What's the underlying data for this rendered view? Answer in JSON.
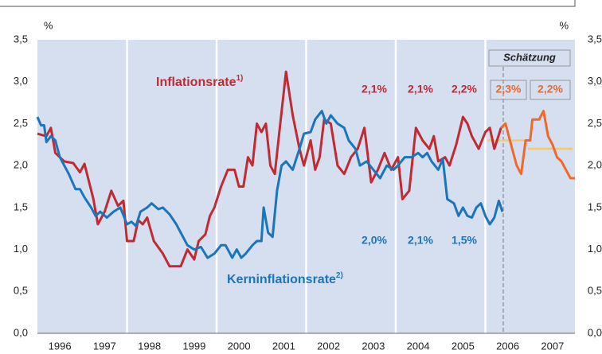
{
  "chart_data": {
    "type": "line",
    "y_unit_left": "%",
    "y_unit_right": "%",
    "xlim": [
      1996,
      2008
    ],
    "ylim": [
      0,
      3.5
    ],
    "yticks": [
      {
        "value": 0,
        "label": "0,0"
      },
      {
        "value": 0.5,
        "label": "0,5"
      },
      {
        "value": 1,
        "label": "1,0"
      },
      {
        "value": 1.5,
        "label": "1,5"
      },
      {
        "value": 2,
        "label": "2,0"
      },
      {
        "value": 2.5,
        "label": "2,5"
      },
      {
        "value": 3,
        "label": "3,0"
      },
      {
        "value": 3.5,
        "label": "3,5"
      }
    ],
    "xticks": [
      {
        "value": 1996.5,
        "label": "1996"
      },
      {
        "value": 1997.5,
        "label": "1997"
      },
      {
        "value": 1998.5,
        "label": "1998"
      },
      {
        "value": 1999.5,
        "label": "1999"
      },
      {
        "value": 2000.5,
        "label": "2000"
      },
      {
        "value": 2001.5,
        "label": "2001"
      },
      {
        "value": 2002.5,
        "label": "2002"
      },
      {
        "value": 2003.5,
        "label": "2003"
      },
      {
        "value": 2004.5,
        "label": "2004"
      },
      {
        "value": 2005.5,
        "label": "2005"
      },
      {
        "value": 2006.5,
        "label": "2006"
      },
      {
        "value": 2007.5,
        "label": "2007"
      }
    ],
    "separators": [
      1998,
      2000,
      2002,
      2004,
      2006
    ],
    "background": "#d5dff0",
    "forecast_start": 2006.4,
    "forecast_label": "Schätzung",
    "series": [
      {
        "name": "Inflationsrate",
        "note": "1)",
        "color": "#c22a32",
        "x": [
          1996.0,
          1996.2,
          1996.3,
          1996.4,
          1996.6,
          1996.8,
          1996.95,
          1997.05,
          1997.25,
          1997.35,
          1997.5,
          1997.65,
          1997.8,
          1997.92,
          1998.0,
          1998.15,
          1998.25,
          1998.35,
          1998.45,
          1998.6,
          1998.8,
          1998.95,
          1999.2,
          1999.35,
          1999.5,
          1999.6,
          1999.75,
          1999.85,
          1999.95,
          2000.1,
          2000.25,
          2000.4,
          2000.5,
          2000.6,
          2000.7,
          2000.8,
          2000.9,
          2001.0,
          2001.1,
          2001.2,
          2001.3,
          2001.4,
          2001.55,
          2001.7,
          2001.85,
          2001.95,
          2002.1,
          2002.2,
          2002.3,
          2002.4,
          2002.55,
          2002.7,
          2002.85,
          2003.0,
          2003.15,
          2003.3,
          2003.45,
          2003.6,
          2003.75,
          2003.9,
          2004.05,
          2004.15,
          2004.3,
          2004.45,
          2004.6,
          2004.75,
          2004.85,
          2004.95,
          2005.1,
          2005.2,
          2005.35,
          2005.5,
          2005.6,
          2005.7,
          2005.85,
          2006.0,
          2006.1,
          2006.2,
          2006.35
        ],
        "values": [
          2.38,
          2.35,
          2.45,
          2.15,
          2.05,
          2.03,
          1.92,
          2.02,
          1.6,
          1.3,
          1.45,
          1.7,
          1.52,
          1.58,
          1.1,
          1.1,
          1.35,
          1.3,
          1.38,
          1.1,
          0.95,
          0.8,
          0.8,
          1.0,
          0.88,
          1.1,
          1.18,
          1.4,
          1.5,
          1.75,
          1.95,
          1.95,
          1.75,
          1.75,
          2.1,
          2.0,
          2.5,
          2.4,
          2.5,
          2.0,
          1.9,
          2.4,
          3.12,
          2.6,
          2.2,
          2.0,
          2.3,
          1.95,
          2.1,
          2.55,
          2.5,
          2.0,
          1.9,
          2.1,
          2.2,
          2.45,
          1.8,
          1.95,
          2.15,
          1.95,
          2.1,
          1.6,
          1.7,
          2.45,
          2.3,
          2.2,
          2.35,
          2.05,
          2.1,
          2.0,
          2.25,
          2.58,
          2.5,
          2.35,
          2.2,
          2.4,
          2.45,
          2.2,
          2.45
        ]
      },
      {
        "name": "Kerninflationsrate",
        "note": "2)",
        "color": "#1b75ba",
        "x": [
          1996.0,
          1996.08,
          1996.15,
          1996.2,
          1996.3,
          1996.4,
          1996.5,
          1996.7,
          1996.85,
          1996.95,
          1997.05,
          1997.2,
          1997.3,
          1997.4,
          1997.55,
          1997.7,
          1997.85,
          1998.0,
          1998.1,
          1998.2,
          1998.3,
          1998.45,
          1998.55,
          1998.7,
          1998.8,
          1998.95,
          1999.1,
          1999.2,
          1999.35,
          1999.5,
          1999.65,
          1999.8,
          1999.95,
          2000.1,
          2000.2,
          2000.35,
          2000.45,
          2000.55,
          2000.65,
          2000.8,
          2000.9,
          2001.0,
          2001.05,
          2001.15,
          2001.25,
          2001.35,
          2001.45,
          2001.55,
          2001.7,
          2001.85,
          2001.95,
          2002.1,
          2002.2,
          2002.35,
          2002.45,
          2002.55,
          2002.7,
          2002.85,
          2002.95,
          2003.1,
          2003.2,
          2003.35,
          2003.5,
          2003.65,
          2003.8,
          2003.95,
          2004.05,
          2004.2,
          2004.35,
          2004.5,
          2004.6,
          2004.7,
          2004.8,
          2004.95,
          2005.05,
          2005.15,
          2005.3,
          2005.4,
          2005.5,
          2005.6,
          2005.7,
          2005.8,
          2005.9,
          2006.0,
          2006.1,
          2006.2,
          2006.3,
          2006.38
        ],
        "values": [
          2.58,
          2.48,
          2.48,
          2.28,
          2.35,
          2.3,
          2.1,
          1.9,
          1.72,
          1.72,
          1.62,
          1.5,
          1.4,
          1.45,
          1.38,
          1.45,
          1.5,
          1.3,
          1.33,
          1.28,
          1.45,
          1.5,
          1.55,
          1.48,
          1.5,
          1.42,
          1.3,
          1.2,
          1.05,
          1.0,
          1.03,
          0.9,
          0.95,
          1.05,
          1.05,
          0.9,
          1.0,
          0.9,
          0.95,
          1.05,
          1.1,
          1.1,
          1.5,
          1.2,
          1.15,
          1.7,
          2.0,
          2.05,
          1.95,
          2.2,
          2.38,
          2.4,
          2.55,
          2.65,
          2.5,
          2.6,
          2.5,
          2.45,
          2.3,
          2.2,
          2.0,
          2.05,
          1.95,
          1.85,
          2.0,
          1.95,
          2.0,
          2.1,
          2.1,
          2.15,
          2.1,
          2.15,
          2.05,
          1.95,
          2.08,
          1.6,
          1.55,
          1.4,
          1.5,
          1.4,
          1.38,
          1.5,
          1.55,
          1.4,
          1.3,
          1.38,
          1.58,
          1.45
        ]
      },
      {
        "color": "#f0682b",
        "x": [
          2006.35,
          2006.45,
          2006.6,
          2006.7,
          2006.8,
          2006.9,
          2007.0,
          2007.05,
          2007.2,
          2007.3,
          2007.4,
          2007.5,
          2007.6,
          2007.7,
          2007.8,
          2007.9,
          2008.0
        ],
        "values": [
          2.45,
          2.5,
          2.2,
          2.0,
          1.9,
          2.3,
          2.3,
          2.55,
          2.55,
          2.65,
          2.35,
          2.25,
          2.1,
          2.05,
          1.95,
          1.85,
          1.85
        ]
      }
    ],
    "averages": {
      "color": "#f6c86a",
      "segments": [
        {
          "start": 2006.05,
          "end": 2006.9,
          "value": 2.3
        },
        {
          "start": 2006.95,
          "end": 2007.95,
          "value": 2.2
        }
      ]
    },
    "annotations": {
      "inflation": [
        "2,1%",
        "2,1%",
        "2,2%"
      ],
      "inflation_forecast": [
        "2,3%",
        "2,2%"
      ],
      "core": [
        "2,0%",
        "2,1%",
        "1,5%"
      ]
    }
  }
}
